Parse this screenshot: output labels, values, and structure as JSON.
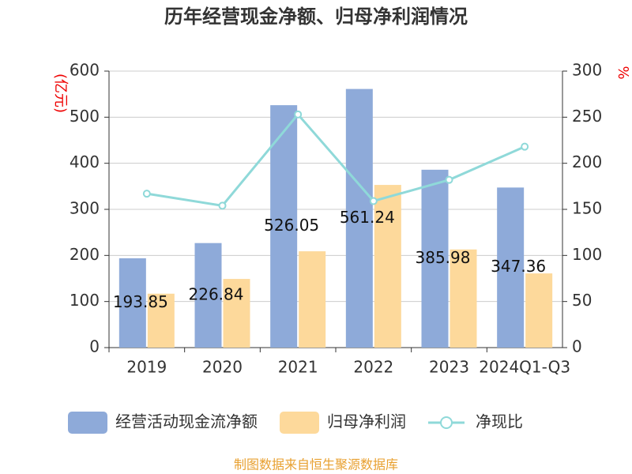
{
  "chart_data": {
    "type": "bar_line",
    "title": "历年经营现金净额、归母净利润情况",
    "y_label": "(亿元)",
    "y2_label": "%",
    "categories": [
      "2019",
      "2020",
      "2021",
      "2022",
      "2023",
      "2024Q1-Q3"
    ],
    "series": [
      {
        "name": "经营活动现金流净额",
        "color": "#8eaad9",
        "type": "bar",
        "values": [
          193.85,
          226.84,
          526.05,
          561.24,
          385.98,
          347.36
        ],
        "value_labels": [
          "193.85",
          "226.84",
          "526.05",
          "561.24",
          "385.98",
          "347.36"
        ]
      },
      {
        "name": "归母净利润",
        "color": "#fdd99b",
        "type": "bar",
        "values": [
          117,
          149,
          209,
          353,
          213,
          161
        ]
      },
      {
        "name": "净现比",
        "color": "#8fd9d9",
        "type": "line",
        "axis": "y2",
        "values": [
          167,
          154,
          253,
          159,
          182,
          218
        ]
      }
    ],
    "ylim": [
      0,
      600
    ],
    "yticks": [
      0,
      100,
      200,
      300,
      400,
      500,
      600
    ],
    "y2lim": [
      0,
      300
    ],
    "y2ticks": [
      0,
      50,
      100,
      150,
      200,
      250,
      300
    ],
    "grid": true,
    "source": "制图数据来自恒生聚源数据库"
  }
}
